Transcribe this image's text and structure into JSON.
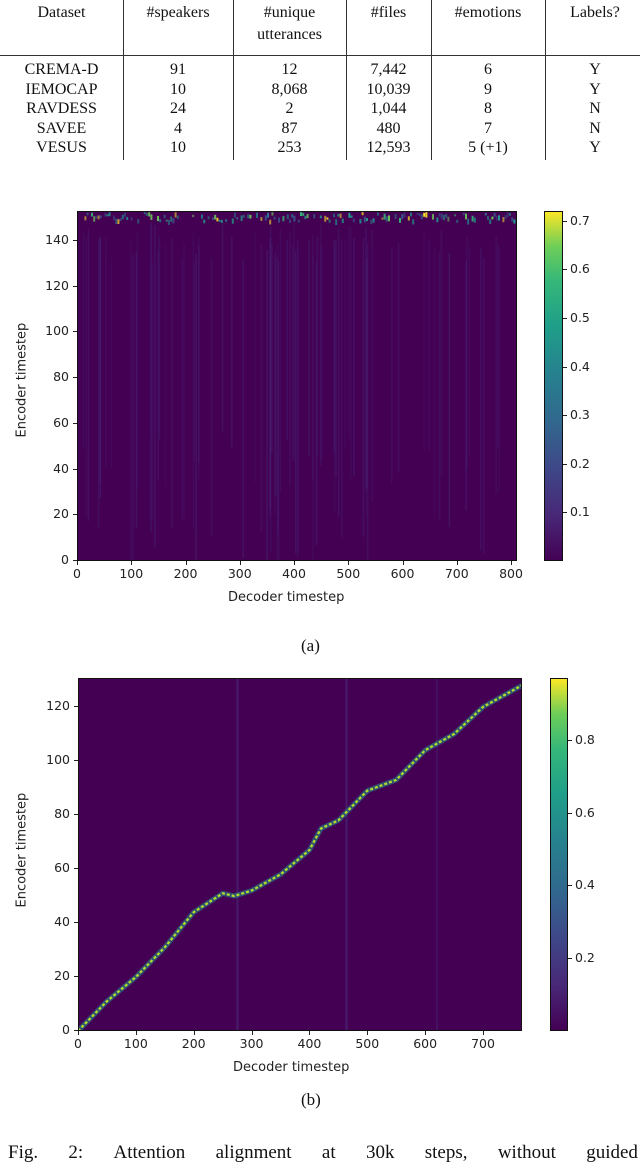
{
  "table": {
    "headers": [
      "Dataset",
      "#speakers",
      "#unique utterances",
      "#files",
      "#emotions",
      "Labels?"
    ],
    "header_lines": [
      [
        "Dataset"
      ],
      [
        "#speakers"
      ],
      [
        "#unique",
        "utterances"
      ],
      [
        "#files"
      ],
      [
        "#emotions"
      ],
      [
        "Labels?"
      ]
    ],
    "rows": [
      [
        "CREMA-D",
        "91",
        "12",
        "7,442",
        "6",
        "Y"
      ],
      [
        "IEMOCAP",
        "10",
        "8,068",
        "10,039",
        "9",
        "Y"
      ],
      [
        "RAVDESS",
        "24",
        "2",
        "1,044",
        "8",
        "N"
      ],
      [
        "SAVEE",
        "4",
        "87",
        "480",
        "7",
        "N"
      ],
      [
        "VESUS",
        "10",
        "253",
        "12,593",
        "5 (+1)",
        "Y"
      ]
    ]
  },
  "chart_data": [
    {
      "type": "heatmap",
      "panel": "(a)",
      "title": "",
      "xlabel": "Decoder timestep",
      "ylabel": "Encoder timestep",
      "xlim": [
        0,
        810
      ],
      "ylim": [
        0,
        152
      ],
      "xticks": [
        0,
        100,
        200,
        300,
        400,
        500,
        600,
        700,
        800
      ],
      "yticks": [
        0,
        20,
        40,
        60,
        80,
        100,
        120,
        140
      ],
      "colormap": "viridis",
      "colorbar": {
        "min": 0,
        "max": 0.72,
        "ticks": [
          0.1,
          0.2,
          0.3,
          0.4,
          0.5,
          0.6,
          0.7
        ]
      },
      "description": "No alignment learned: attention concentrated on the last encoder timesteps (~145-152) across all decoder steps, near-zero elsewhere with faint vertical streaks"
    },
    {
      "type": "heatmap",
      "panel": "(b)",
      "title": "",
      "xlabel": "Decoder timestep",
      "ylabel": "Encoder timestep",
      "xlim": [
        0,
        767
      ],
      "ylim": [
        0,
        129
      ],
      "xticks": [
        0,
        100,
        200,
        300,
        400,
        500,
        600,
        700
      ],
      "yticks": [
        0,
        20,
        40,
        60,
        80,
        100,
        120
      ],
      "colormap": "viridis",
      "colorbar": {
        "min": 0,
        "max": 0.97,
        "ticks": [
          0.2,
          0.4,
          0.6,
          0.8
        ]
      },
      "alignment_path": {
        "x": [
          0,
          50,
          100,
          150,
          200,
          250,
          270,
          300,
          350,
          400,
          420,
          450,
          500,
          550,
          600,
          650,
          700,
          767
        ],
        "y": [
          0,
          11,
          20,
          31,
          44,
          51,
          50,
          52,
          58,
          67,
          75,
          78,
          89,
          93,
          104,
          110,
          120,
          128
        ]
      },
      "description": "Clean monotonic diagonal alignment from (0,0) to (~767,~128)"
    }
  ],
  "panels": {
    "a": {
      "label": "(a)",
      "xlabel": "Decoder timestep",
      "ylabel": "Encoder timestep",
      "xticks": [
        "0",
        "100",
        "200",
        "300",
        "400",
        "500",
        "600",
        "700",
        "800"
      ],
      "yticks": [
        "0",
        "20",
        "40",
        "60",
        "80",
        "100",
        "120",
        "140"
      ],
      "cbar_ticks": [
        "0.1",
        "0.2",
        "0.3",
        "0.4",
        "0.5",
        "0.6",
        "0.7"
      ]
    },
    "b": {
      "label": "(b)",
      "xlabel": "Decoder timestep",
      "ylabel": "Encoder timestep",
      "xticks": [
        "0",
        "100",
        "200",
        "300",
        "400",
        "500",
        "600",
        "700"
      ],
      "yticks": [
        "0",
        "20",
        "40",
        "60",
        "80",
        "100",
        "120"
      ],
      "cbar_ticks": [
        "0.2",
        "0.4",
        "0.6",
        "0.8"
      ]
    }
  },
  "caption": {
    "words": [
      "Fig.",
      "2:",
      "Attention",
      "alignment",
      "at",
      "30k",
      "steps,",
      "without",
      "guided"
    ]
  }
}
